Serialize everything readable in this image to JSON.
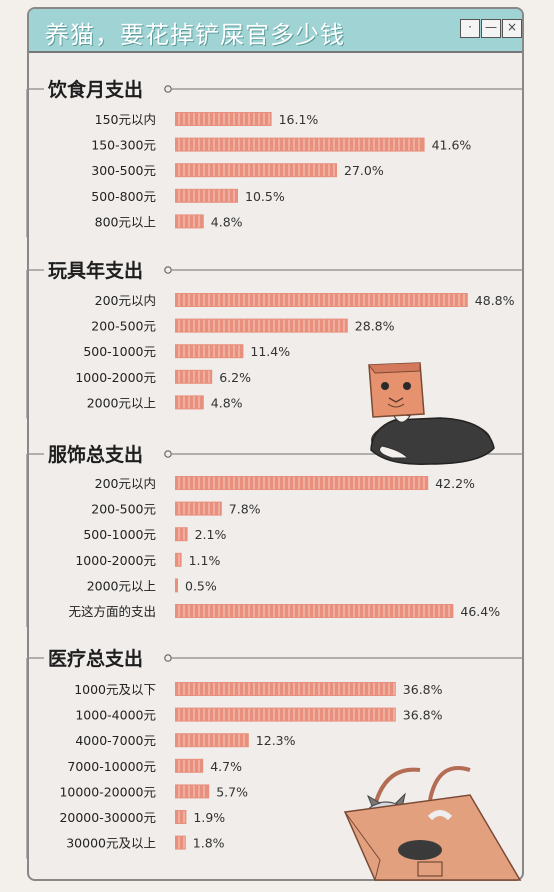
{
  "window": {
    "title": "养猫，要花掉铲屎官多少钱",
    "buttons": [
      "·",
      "—",
      "×"
    ]
  },
  "colors": {
    "bar": "#e8907d",
    "bar_stripe": "#f6cbbf",
    "title_bar": "#9fd3d4"
  },
  "chart_data": [
    {
      "type": "bar",
      "title": "饮食月支出",
      "categories": [
        "150元以内",
        "150-300元",
        "300-500元",
        "500-800元",
        "800元以上"
      ],
      "values": [
        16.1,
        41.6,
        27.0,
        10.5,
        4.8
      ],
      "labels": [
        "16.1%",
        "41.6%",
        "27.0%",
        "10.5%",
        "4.8%"
      ]
    },
    {
      "type": "bar",
      "title": "玩具年支出",
      "categories": [
        "200元以内",
        "200-500元",
        "500-1000元",
        "1000-2000元",
        "2000元以上"
      ],
      "values": [
        48.8,
        28.8,
        11.4,
        6.2,
        4.8
      ],
      "labels": [
        "48.8%",
        "28.8%",
        "11.4%",
        "6.2%",
        "4.8%"
      ]
    },
    {
      "type": "bar",
      "title": "服饰总支出",
      "categories": [
        "200元以内",
        "200-500元",
        "500-1000元",
        "1000-2000元",
        "2000元以上",
        "无这方面的支出"
      ],
      "values": [
        42.2,
        7.8,
        2.1,
        1.1,
        0.5,
        46.4
      ],
      "labels": [
        "42.2%",
        "7.8%",
        "2.1%",
        "1.1%",
        "0.5%",
        "46.4%"
      ]
    },
    {
      "type": "bar",
      "title": "医疗总支出",
      "categories": [
        "1000元及以下",
        "1000-4000元",
        "4000-7000元",
        "7000-10000元",
        "10000-20000元",
        "20000-30000元",
        "30000元及以上"
      ],
      "values": [
        36.8,
        36.8,
        12.3,
        4.7,
        5.7,
        1.9,
        1.8
      ],
      "labels": [
        "36.8%",
        "36.8%",
        "12.3%",
        "4.7%",
        "5.7%",
        "1.9%",
        "1.8%"
      ]
    }
  ]
}
